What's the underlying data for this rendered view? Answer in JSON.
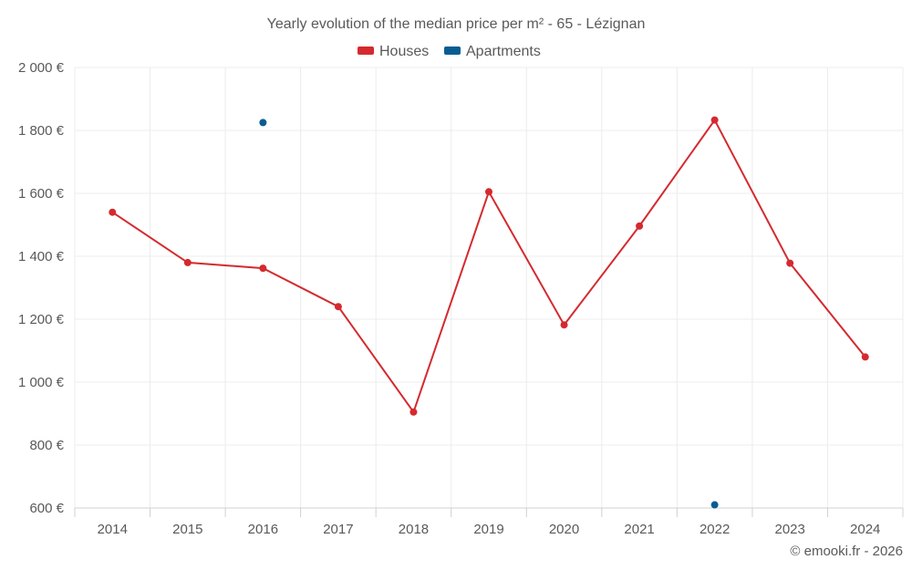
{
  "chart_data": {
    "type": "line",
    "title": "Yearly evolution of the median price per m² - 65 - Lézignan",
    "categories": [
      "2014",
      "2015",
      "2016",
      "2017",
      "2018",
      "2019",
      "2020",
      "2021",
      "2022",
      "2023",
      "2024"
    ],
    "series": [
      {
        "name": "Houses",
        "color": "#d42a2f",
        "values": [
          1540,
          1380,
          1362,
          1240,
          905,
          1605,
          1182,
          1496,
          1833,
          1378,
          1080
        ]
      },
      {
        "name": "Apartments",
        "color": "#075d92",
        "values": [
          null,
          null,
          1825,
          null,
          null,
          null,
          null,
          null,
          610,
          null,
          null
        ]
      }
    ],
    "yticks": [
      "600 €",
      "800 €",
      "1 000 €",
      "1 200 €",
      "1 400 €",
      "1 600 €",
      "1 800 €",
      "2 000 €"
    ],
    "ylim": [
      600,
      2000
    ],
    "ystep": 200,
    "xlabel": "",
    "ylabel": "",
    "grid": true,
    "legend_position": "top-center"
  },
  "credit": "© emooki.fr - 2026"
}
